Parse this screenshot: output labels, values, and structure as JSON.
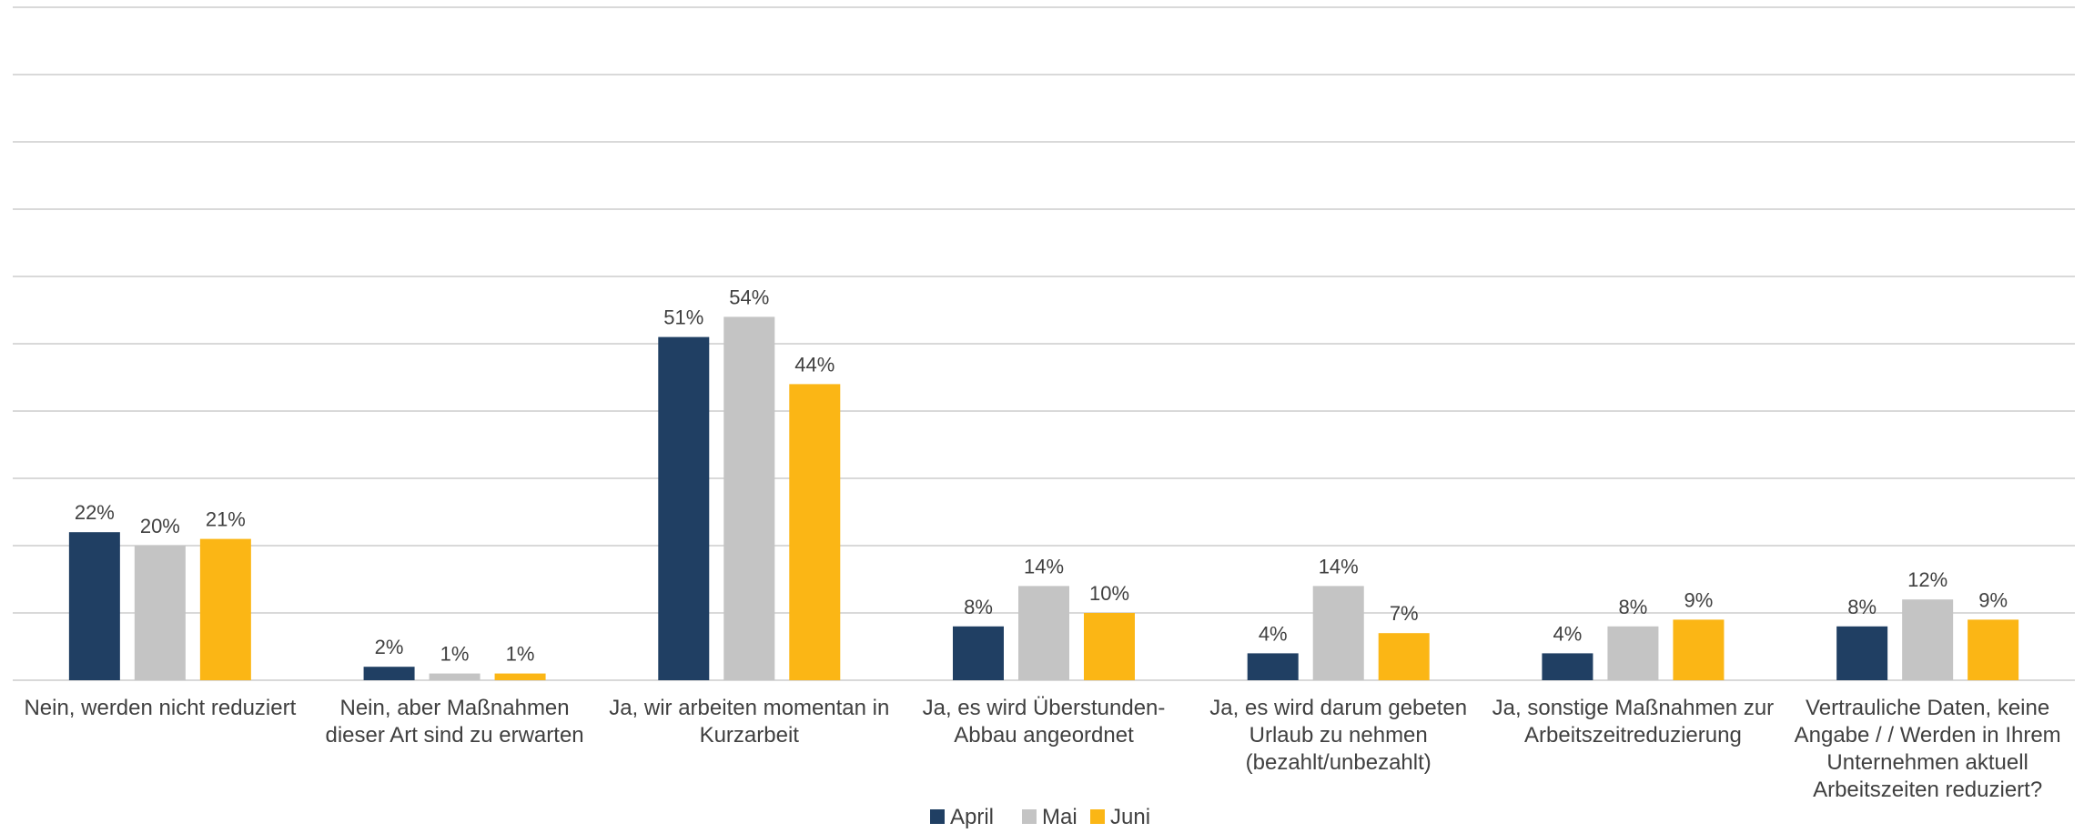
{
  "chart_data": {
    "type": "bar",
    "categories": [
      [
        "Nein, werden nicht reduziert"
      ],
      [
        "Nein, aber Maßnahmen",
        "dieser Art sind zu erwarten"
      ],
      [
        "Ja, wir arbeiten momentan in",
        "Kurzarbeit"
      ],
      [
        "Ja, es wird Überstunden-",
        "Abbau angeordnet"
      ],
      [
        "Ja, es wird darum gebeten",
        "Urlaub zu nehmen",
        "(bezahlt/unbezahlt)"
      ],
      [
        "Ja, sonstige Maßnahmen zur",
        "Arbeitszeitreduzierung"
      ],
      [
        "Vertrauliche Daten, keine",
        "Angabe / / Werden in Ihrem",
        "Unternehmen aktuell",
        "Arbeitszeiten reduziert?"
      ]
    ],
    "series": [
      {
        "name": "April",
        "color": "#203f63",
        "values": [
          22,
          2,
          51,
          8,
          4,
          4,
          8
        ],
        "labels": [
          "22%",
          "2%",
          "51%",
          "8%",
          "4%",
          "4%",
          "8%"
        ]
      },
      {
        "name": "Mai",
        "color": "#c4c4c4",
        "values": [
          20,
          1,
          54,
          14,
          14,
          8,
          12
        ],
        "labels": [
          "20%",
          "1%",
          "54%",
          "14%",
          "14%",
          "8%",
          "12%"
        ]
      },
      {
        "name": "Juni",
        "color": "#fbb615",
        "values": [
          21,
          1,
          44,
          10,
          7,
          9,
          9
        ],
        "labels": [
          "21%",
          "1%",
          "44%",
          "10%",
          "7%",
          "9%",
          "9%"
        ]
      }
    ],
    "ylim": [
      0,
      100
    ],
    "grid": true,
    "legend": "bottom-center"
  }
}
